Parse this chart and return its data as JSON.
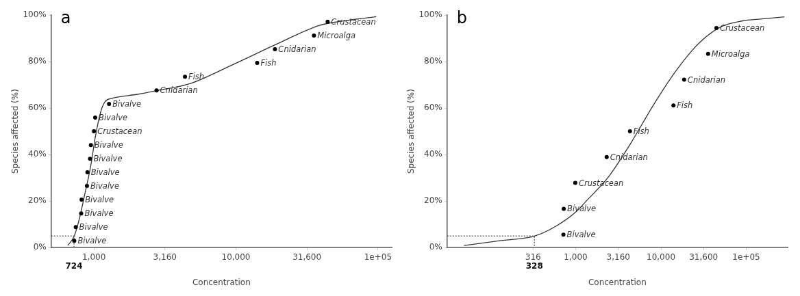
{
  "chart_data": [
    {
      "type": "scatter",
      "xlabel": "Concentration",
      "ylabel": "Species affected (%)",
      "log": "x",
      "xlim": [
        500,
        125000
      ],
      "ylim": [
        0,
        100
      ],
      "xticks": [
        {
          "value": 1000,
          "label": "1,000"
        },
        {
          "value": 3160,
          "label": "3,160"
        },
        {
          "value": 10000,
          "label": "10,000"
        },
        {
          "value": 31600,
          "label": "31,600"
        },
        {
          "value": 100000,
          "label": "1e+05"
        }
      ],
      "yticks": [
        {
          "value": 0,
          "label": "0%"
        },
        {
          "value": 20,
          "label": "20%"
        },
        {
          "value": 40,
          "label": "40%"
        },
        {
          "value": 60,
          "label": "60%"
        },
        {
          "value": 80,
          "label": "80%"
        },
        {
          "value": 100,
          "label": "100%"
        }
      ],
      "x": [
        727,
        745,
        813,
        819,
        893,
        900,
        939,
        952,
        1000,
        1021,
        1277,
        2760,
        4375,
        14100,
        18800,
        35400,
        44200
      ],
      "series": [
        {
          "color": "#000000",
          "marker": "circle",
          "values": [
            2.9,
            8.8,
            14.7,
            20.6,
            26.5,
            32.4,
            38.2,
            44.1,
            50,
            55.9,
            61.8,
            67.6,
            73.5,
            79.4,
            85.3,
            91.2,
            97.1
          ]
        },
        {
          "type": "line",
          "color": "#666666",
          "line_style": "dotted",
          "x": [
            500,
            724,
            724
          ],
          "values": [
            5,
            5,
            0
          ]
        },
        {
          "type": "line",
          "color": "#333333",
          "x": [
            655,
            727,
            785,
            873,
            952,
            1021,
            1114,
            1196,
            1327,
            2024,
            2864,
            4690,
            9440,
            19050,
            38400,
            54600,
            97300
          ],
          "values": [
            0.9,
            5,
            11.8,
            24.5,
            35.5,
            47.3,
            58.2,
            62.7,
            64.1,
            65.9,
            67.7,
            70.4,
            78.6,
            87.3,
            95.5,
            97.3,
            99.3
          ]
        }
      ],
      "annotations": [
        "a",
        {
          "text": "724",
          "x": 724,
          "y": 0
        },
        {
          "text": "Bivalve",
          "x": 727,
          "y": 2.9
        },
        {
          "text": "Bivalve",
          "x": 745,
          "y": 8.8
        },
        {
          "text": "Bivalve",
          "x": 813,
          "y": 14.7
        },
        {
          "text": "Bivalve",
          "x": 819,
          "y": 20.6
        },
        {
          "text": "Bivalve",
          "x": 893,
          "y": 26.5
        },
        {
          "text": "Bivalve",
          "x": 900,
          "y": 32.4
        },
        {
          "text": "Bivalve",
          "x": 939,
          "y": 38.2
        },
        {
          "text": "Bivalve",
          "x": 952,
          "y": 44.1
        },
        {
          "text": "Crustacean",
          "x": 1000,
          "y": 50
        },
        {
          "text": "Bivalve",
          "x": 1021,
          "y": 55.9
        },
        {
          "text": "Bivalve",
          "x": 1277,
          "y": 61.8
        },
        {
          "text": "Cnidarian",
          "x": 2760,
          "y": 67.6
        },
        {
          "text": "Fish",
          "x": 4375,
          "y": 73.5
        },
        {
          "text": "Fish",
          "x": 14100,
          "y": 79.4
        },
        {
          "text": "Cnidarian",
          "x": 18800,
          "y": 85.3
        },
        {
          "text": "Microalga",
          "x": 35400,
          "y": 91.2
        },
        {
          "text": "Crustacean",
          "x": 44200,
          "y": 97.1
        }
      ]
    },
    {
      "type": "scatter",
      "xlabel": "Concentration",
      "ylabel": "Species affected (%)",
      "log": "x",
      "xlim": [
        31,
        306000
      ],
      "ylim": [
        0,
        100
      ],
      "xticks": [
        {
          "value": 316,
          "label": "316"
        },
        {
          "value": 1000,
          "label": "1,000"
        },
        {
          "value": 3160,
          "label": "3,160"
        },
        {
          "value": 10000,
          "label": "10,000"
        },
        {
          "value": 31600,
          "label": "31,600"
        },
        {
          "value": 100000,
          "label": "1e+05"
        }
      ],
      "yticks": [
        {
          "value": 0,
          "label": "0%"
        },
        {
          "value": 20,
          "label": "20%"
        },
        {
          "value": 40,
          "label": "40%"
        },
        {
          "value": 60,
          "label": "60%"
        },
        {
          "value": 80,
          "label": "80%"
        },
        {
          "value": 100,
          "label": "100%"
        }
      ],
      "x": [
        717,
        724,
        988,
        2307,
        4330,
        14000,
        18700,
        35700,
        44700
      ],
      "series": [
        {
          "color": "#000000",
          "marker": "circle",
          "values": [
            5.6,
            16.7,
            27.8,
            38.9,
            50,
            61.1,
            72.2,
            83.3,
            94.4
          ]
        },
        {
          "type": "line",
          "color": "#666666",
          "line_style": "dotted",
          "x": [
            31,
            328,
            328
          ],
          "values": [
            5,
            5,
            0
          ]
        },
        {
          "type": "line",
          "color": "#333333",
          "x": [
            49,
            124,
            322,
            562,
            1031,
            1313,
            2400,
            4410,
            8090,
            14800,
            27200,
            49800,
            91200,
            139000,
            280000
          ],
          "values": [
            0.9,
            2.9,
            4.9,
            8.8,
            15.7,
            19.8,
            30.2,
            44.8,
            61.1,
            75.7,
            87.5,
            94.8,
            97.5,
            98.2,
            99.2
          ]
        }
      ],
      "annotations": [
        "b",
        {
          "text": "328",
          "x": 328,
          "y": 0
        },
        {
          "text": "Bivalve",
          "x": 717,
          "y": 5.6
        },
        {
          "text": "Bivalve",
          "x": 724,
          "y": 16.7
        },
        {
          "text": "Crustacean",
          "x": 988,
          "y": 27.8
        },
        {
          "text": "Cnidarian",
          "x": 2307,
          "y": 38.9
        },
        {
          "text": "Fish",
          "x": 4330,
          "y": 50
        },
        {
          "text": "Fish",
          "x": 14000,
          "y": 61.1
        },
        {
          "text": "Cnidarian",
          "x": 18700,
          "y": 72.2
        },
        {
          "text": "Microalga",
          "x": 35700,
          "y": 83.3
        },
        {
          "text": "Crustacean",
          "x": 44700,
          "y": 94.4
        }
      ]
    }
  ]
}
